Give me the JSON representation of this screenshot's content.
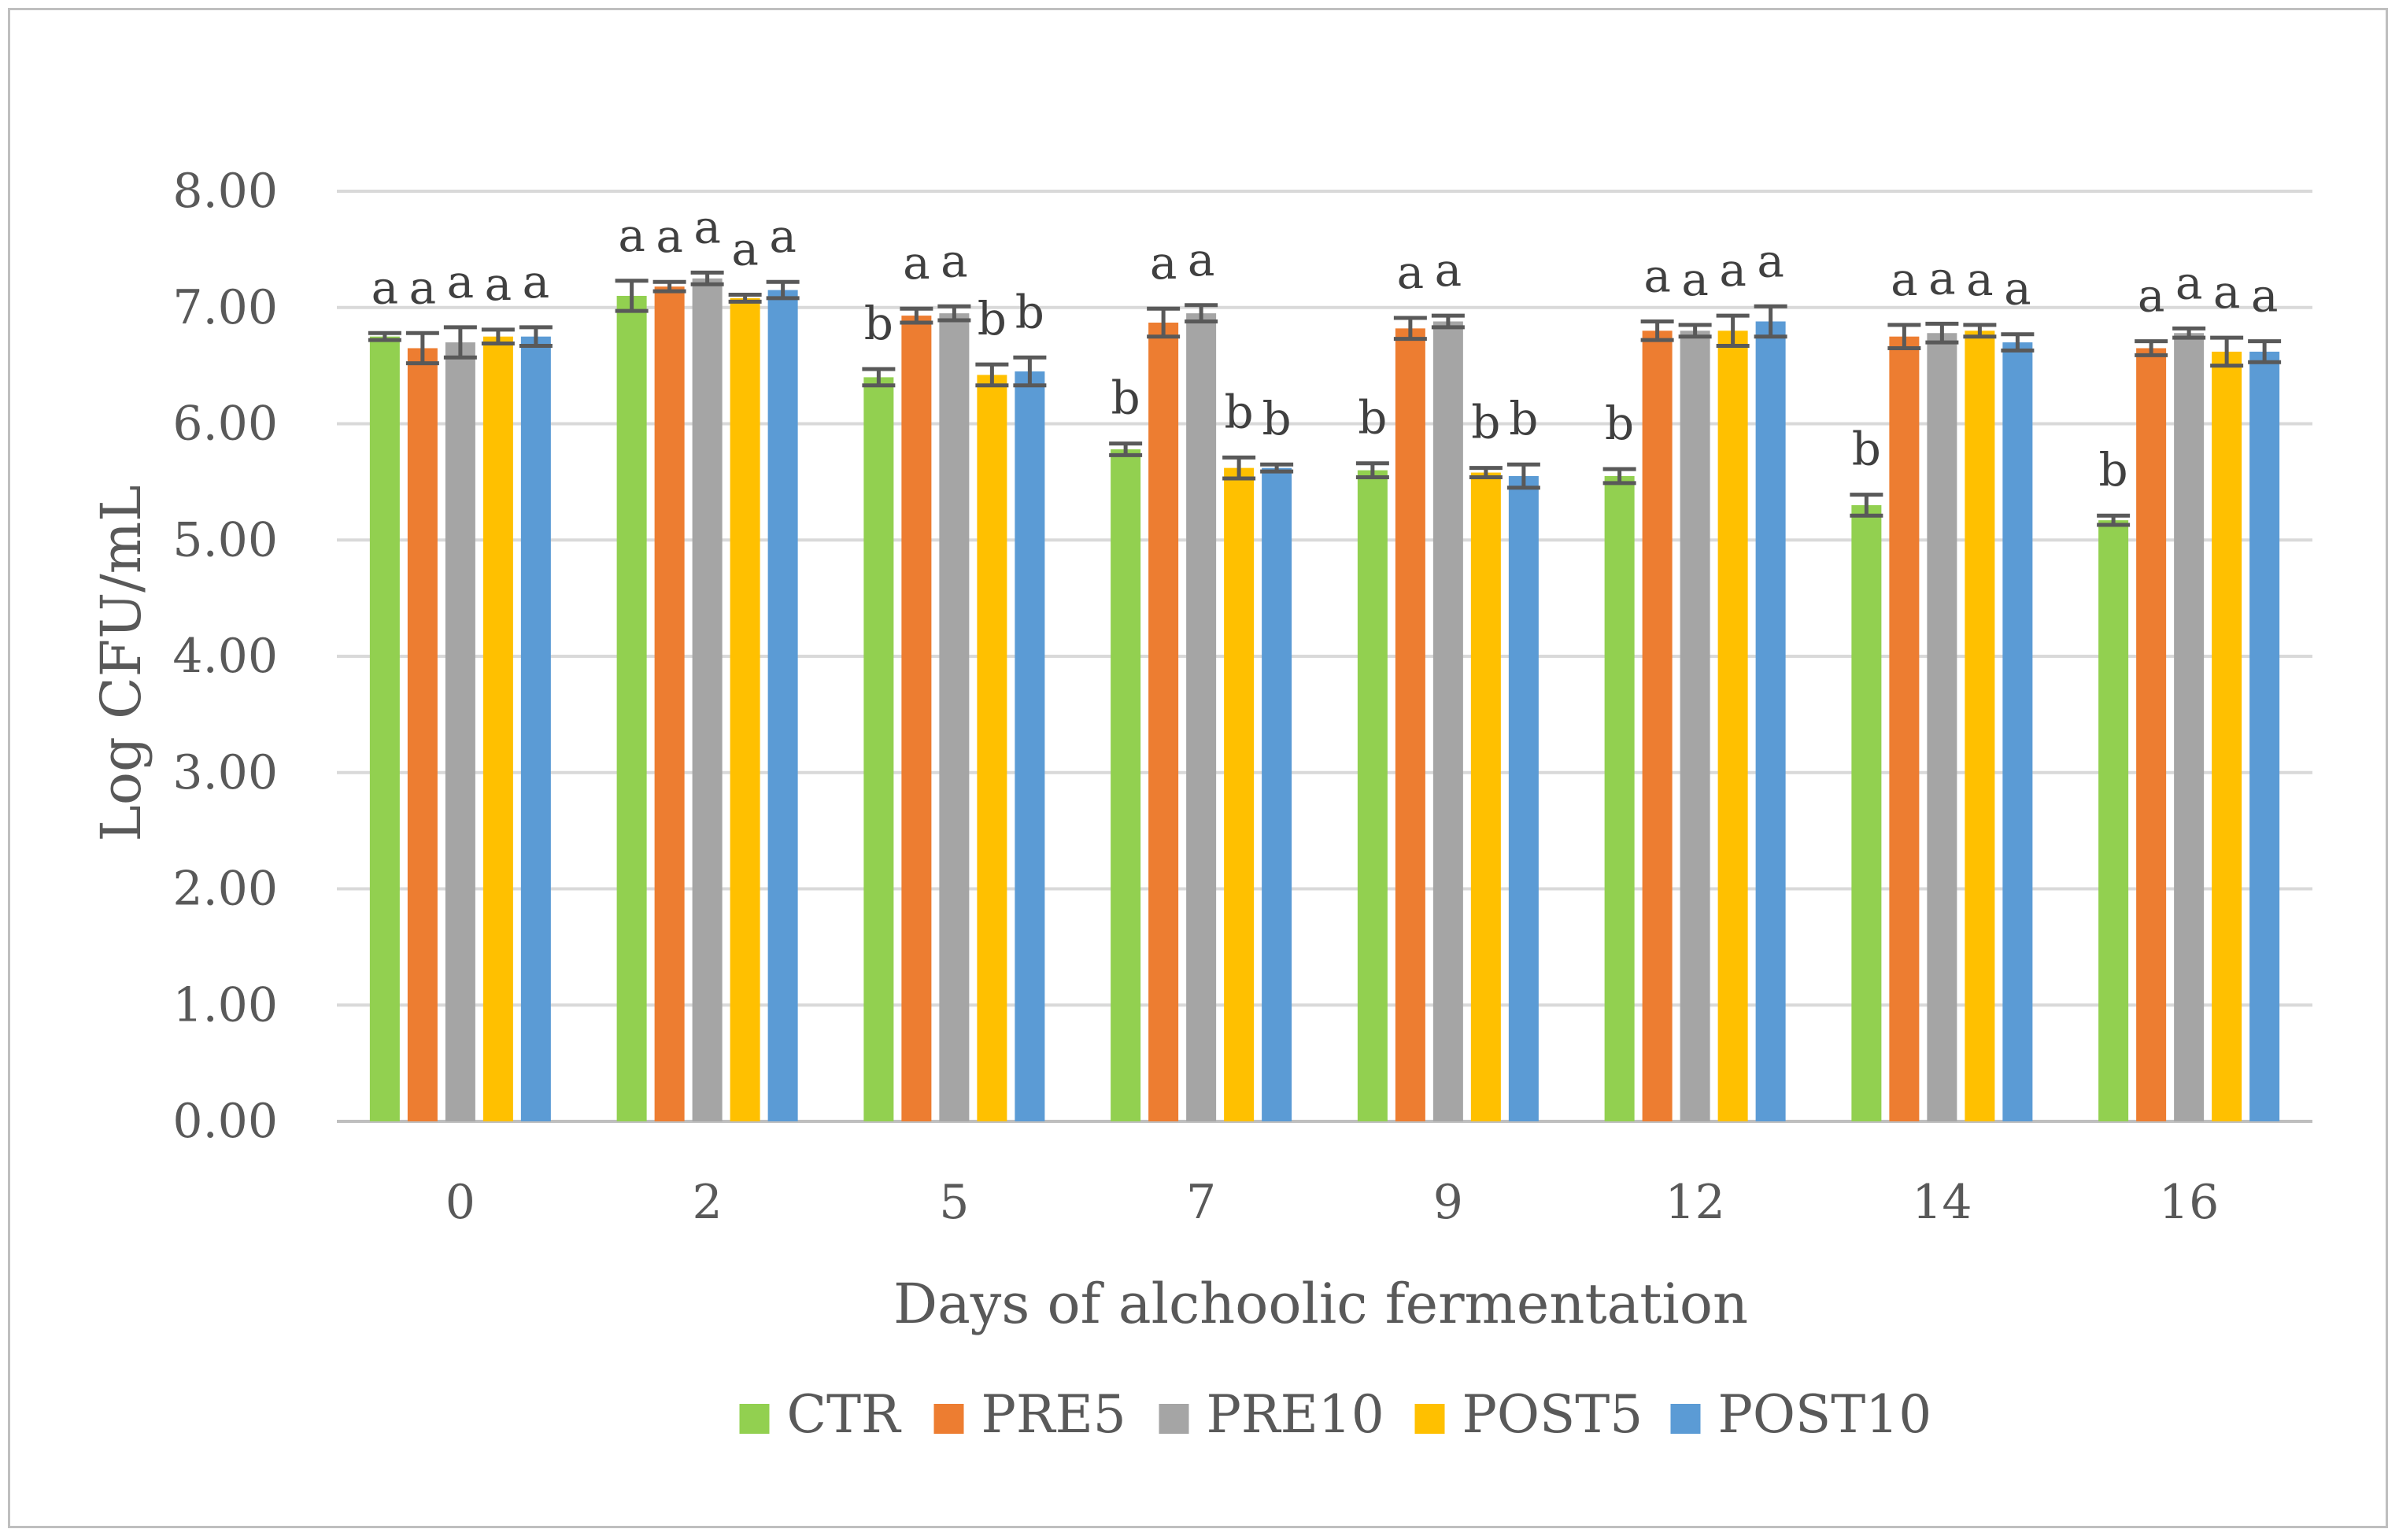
{
  "chart_data": {
    "type": "bar",
    "title": "",
    "xlabel": "Days of alchoolic fermentation",
    "ylabel": "Log CFU/mL",
    "ylim": [
      0,
      8
    ],
    "ytick_labels": [
      "0.00",
      "1.00",
      "2.00",
      "3.00",
      "4.00",
      "5.00",
      "6.00",
      "7.00",
      "8.00"
    ],
    "categories": [
      "0",
      "2",
      "5",
      "7",
      "9",
      "12",
      "14",
      "16"
    ],
    "grid": true,
    "legend_position": "bottom",
    "series": [
      {
        "name": "CTR",
        "color": "#92d050",
        "values": [
          6.75,
          7.1,
          6.4,
          5.78,
          5.6,
          5.55,
          5.3,
          5.17
        ],
        "errors": [
          0.03,
          0.13,
          0.07,
          0.05,
          0.06,
          0.06,
          0.09,
          0.04
        ],
        "letters": [
          "a",
          "a",
          "b",
          "b",
          "b",
          "b",
          "b",
          "b"
        ]
      },
      {
        "name": "PRE5",
        "color": "#ed7d31",
        "values": [
          6.65,
          7.18,
          6.93,
          6.87,
          6.82,
          6.8,
          6.75,
          6.65
        ],
        "errors": [
          0.13,
          0.04,
          0.06,
          0.12,
          0.09,
          0.08,
          0.1,
          0.06
        ],
        "letters": [
          "a",
          "a",
          "a",
          "a",
          "a",
          "a",
          "a",
          "a"
        ]
      },
      {
        "name": "PRE10",
        "color": "#a5a5a5",
        "values": [
          6.7,
          7.25,
          6.95,
          6.95,
          6.88,
          6.8,
          6.78,
          6.78
        ],
        "errors": [
          0.13,
          0.05,
          0.06,
          0.07,
          0.05,
          0.05,
          0.08,
          0.04
        ],
        "letters": [
          "a",
          "a",
          "a",
          "a",
          "a",
          "a",
          "a",
          "a"
        ]
      },
      {
        "name": "POST5",
        "color": "#ffc000",
        "values": [
          6.75,
          7.08,
          6.42,
          5.62,
          5.58,
          6.8,
          6.8,
          6.62
        ],
        "errors": [
          0.06,
          0.03,
          0.09,
          0.09,
          0.04,
          0.13,
          0.05,
          0.12
        ],
        "letters": [
          "a",
          "a",
          "b",
          "b",
          "b",
          "a",
          "a",
          "a"
        ]
      },
      {
        "name": "POST10",
        "color": "#5b9bd5",
        "values": [
          6.75,
          7.15,
          6.45,
          5.62,
          5.55,
          6.88,
          6.7,
          6.62
        ],
        "errors": [
          0.08,
          0.07,
          0.12,
          0.03,
          0.1,
          0.13,
          0.07,
          0.09
        ],
        "letters": [
          "a",
          "a",
          "b",
          "b",
          "b",
          "a",
          "a",
          "a"
        ]
      }
    ]
  }
}
